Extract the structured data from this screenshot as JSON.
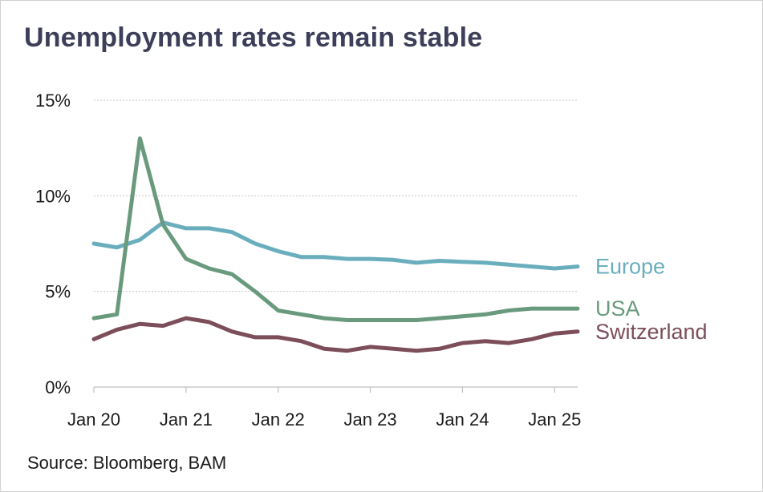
{
  "title": "Unemployment rates remain stable",
  "source": "Source: Bloomberg, BAM",
  "chart_data": {
    "type": "line",
    "title": "Unemployment rates remain stable",
    "xlabel": "",
    "ylabel": "",
    "x": [
      "Jan 20",
      "Apr 20",
      "Jul 20",
      "Oct 20",
      "Jan 21",
      "Apr 21",
      "Jul 21",
      "Oct 21",
      "Jan 22",
      "Apr 22",
      "Jul 22",
      "Oct 22",
      "Jan 23",
      "Apr 23",
      "Jul 23",
      "Oct 23",
      "Jan 24",
      "Apr 24",
      "Jul 24",
      "Oct 24",
      "Jan 25",
      "Apr 25"
    ],
    "x_tick_labels": [
      "Jan 20",
      "Jan 21",
      "Jan 22",
      "Jan 23",
      "Jan 24",
      "Jan 25"
    ],
    "y_tick_labels": [
      "0%",
      "5%",
      "10%",
      "15%"
    ],
    "ylim": [
      0,
      15
    ],
    "grid": true,
    "legend": "inline-right",
    "series": [
      {
        "name": "Europe",
        "color": "#6aaebd",
        "values": [
          7.5,
          7.3,
          7.7,
          8.6,
          8.3,
          8.3,
          8.1,
          7.5,
          7.1,
          6.8,
          6.8,
          6.7,
          6.7,
          6.65,
          6.5,
          6.6,
          6.55,
          6.5,
          6.4,
          6.3,
          6.2,
          6.3
        ]
      },
      {
        "name": "USA",
        "color": "#6a9a7d",
        "values": [
          3.6,
          3.8,
          13.0,
          8.5,
          6.7,
          6.2,
          5.9,
          5.0,
          4.0,
          3.8,
          3.6,
          3.5,
          3.5,
          3.5,
          3.5,
          3.6,
          3.7,
          3.8,
          4.0,
          4.1,
          4.1,
          4.1
        ]
      },
      {
        "name": "Switzerland",
        "color": "#7c4e5a",
        "values": [
          2.5,
          3.0,
          3.3,
          3.2,
          3.6,
          3.4,
          2.9,
          2.6,
          2.6,
          2.4,
          2.0,
          1.9,
          2.1,
          2.0,
          1.9,
          2.0,
          2.3,
          2.4,
          2.3,
          2.5,
          2.8,
          2.9
        ]
      }
    ]
  }
}
